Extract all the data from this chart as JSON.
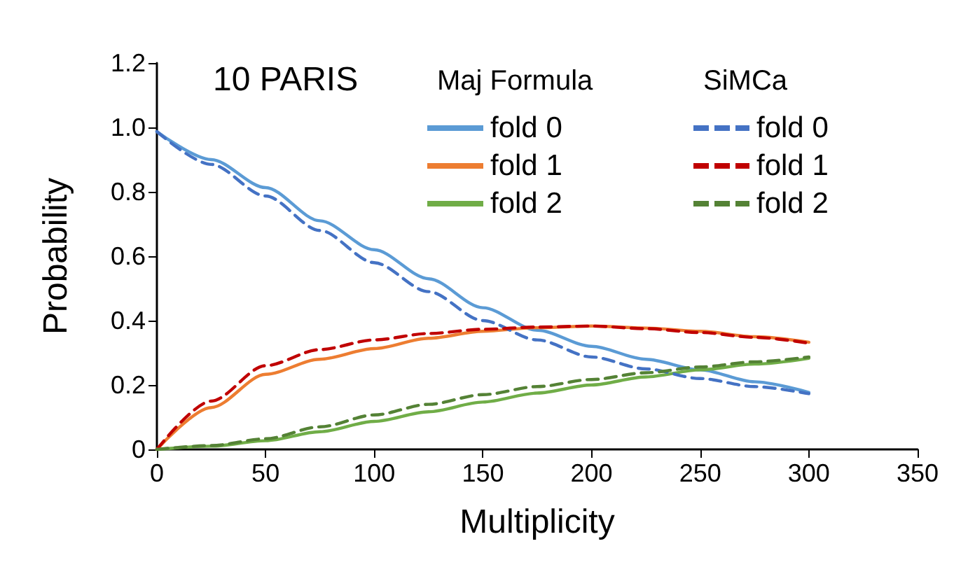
{
  "chart_data": {
    "type": "line",
    "xlabel": "Multiplicity",
    "ylabel": "Probability",
    "annotations": [
      "10 PARIS",
      "Maj Formula",
      "SiMCa"
    ],
    "x": [
      0,
      25,
      50,
      75,
      100,
      125,
      150,
      175,
      200,
      225,
      250,
      275,
      300
    ],
    "series": [
      {
        "name": "fold 0",
        "color": "#5b9bd5",
        "line_style": "solid",
        "values": [
          0.987,
          0.9,
          0.813,
          0.71,
          0.62,
          0.53,
          0.44,
          0.37,
          0.32,
          0.28,
          0.247,
          0.21,
          0.177
        ]
      },
      {
        "name": "fold 1",
        "color": "#ed7d31",
        "line_style": "solid",
        "values": [
          0,
          0.13,
          0.233,
          0.28,
          0.313,
          0.345,
          0.367,
          0.378,
          0.383,
          0.377,
          0.367,
          0.35,
          0.333
        ]
      },
      {
        "name": "fold 2",
        "color": "#70ad47",
        "line_style": "solid",
        "values": [
          0,
          0.01,
          0.027,
          0.055,
          0.087,
          0.117,
          0.147,
          0.175,
          0.2,
          0.225,
          0.247,
          0.265,
          0.283
        ]
      },
      {
        "name": "fold 0",
        "color": "#4472c4",
        "line_style": "dashed",
        "values": [
          0.987,
          0.885,
          0.787,
          0.68,
          0.58,
          0.49,
          0.4,
          0.34,
          0.287,
          0.25,
          0.22,
          0.195,
          0.173
        ]
      },
      {
        "name": "fold 1",
        "color": "#c00000",
        "line_style": "dashed",
        "values": [
          0,
          0.15,
          0.26,
          0.31,
          0.34,
          0.36,
          0.373,
          0.38,
          0.383,
          0.375,
          0.363,
          0.348,
          0.33
        ]
      },
      {
        "name": "fold 2",
        "color": "#548235",
        "line_style": "dashed",
        "values": [
          0,
          0.012,
          0.033,
          0.07,
          0.107,
          0.14,
          0.17,
          0.195,
          0.217,
          0.238,
          0.256,
          0.272,
          0.287
        ]
      }
    ],
    "xlim": [
      0,
      350
    ],
    "xticks": [
      0,
      50,
      100,
      150,
      200,
      250,
      300,
      350
    ],
    "ylim": [
      0,
      1.2
    ],
    "yticks": [
      0,
      0.2,
      0.4,
      0.6,
      0.8,
      {
        "value": 1,
        "label": "1.0"
      },
      {
        "value": 1.2,
        "label": "1.2"
      }
    ],
    "grid": false,
    "legend": "top right",
    "marker": "none"
  }
}
